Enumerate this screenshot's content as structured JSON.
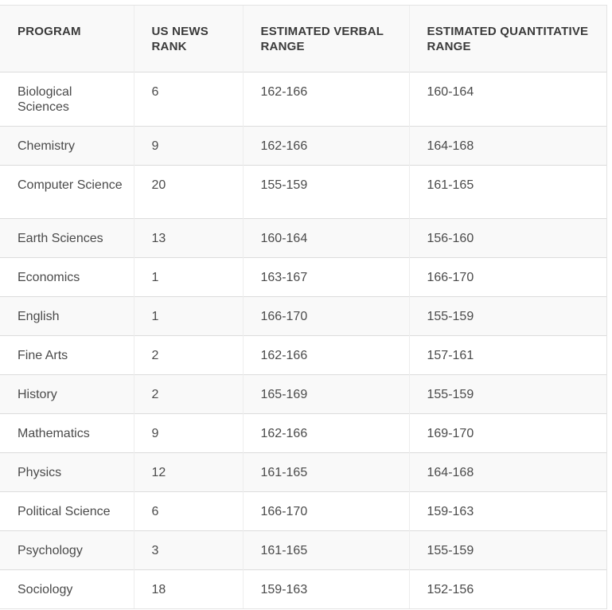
{
  "table": {
    "headers": {
      "program": "PROGRAM",
      "rank": "US NEWS RANK",
      "verbal": "ESTIMATED VERBAL RANGE",
      "quant": "ESTIMATED QUANTITATIVE RANGE"
    },
    "rows": [
      {
        "program": "Biological Sciences",
        "rank": "6",
        "verbal": "162-166",
        "quant": "160-164"
      },
      {
        "program": "Chemistry",
        "rank": "9",
        "verbal": "162-166",
        "quant": "164-168"
      },
      {
        "program": "Computer Science",
        "rank": "20",
        "verbal": "155-159",
        "quant": "161-165"
      },
      {
        "program": "Earth Sciences",
        "rank": "13",
        "verbal": "160-164",
        "quant": "156-160"
      },
      {
        "program": "Economics",
        "rank": "1",
        "verbal": "163-167",
        "quant": "166-170"
      },
      {
        "program": "English",
        "rank": "1",
        "verbal": "166-170",
        "quant": "155-159"
      },
      {
        "program": "Fine Arts",
        "rank": "2",
        "verbal": "162-166",
        "quant": "157-161"
      },
      {
        "program": "History",
        "rank": "2",
        "verbal": "165-169",
        "quant": "155-159"
      },
      {
        "program": "Mathematics",
        "rank": "9",
        "verbal": "162-166",
        "quant": "169-170"
      },
      {
        "program": "Physics",
        "rank": "12",
        "verbal": "161-165",
        "quant": "164-168"
      },
      {
        "program": "Political Science",
        "rank": "6",
        "verbal": "166-170",
        "quant": "159-163"
      },
      {
        "program": "Psychology",
        "rank": "3",
        "verbal": "161-165",
        "quant": "155-159"
      },
      {
        "program": "Sociology",
        "rank": "18",
        "verbal": "159-163",
        "quant": "152-156"
      }
    ]
  }
}
